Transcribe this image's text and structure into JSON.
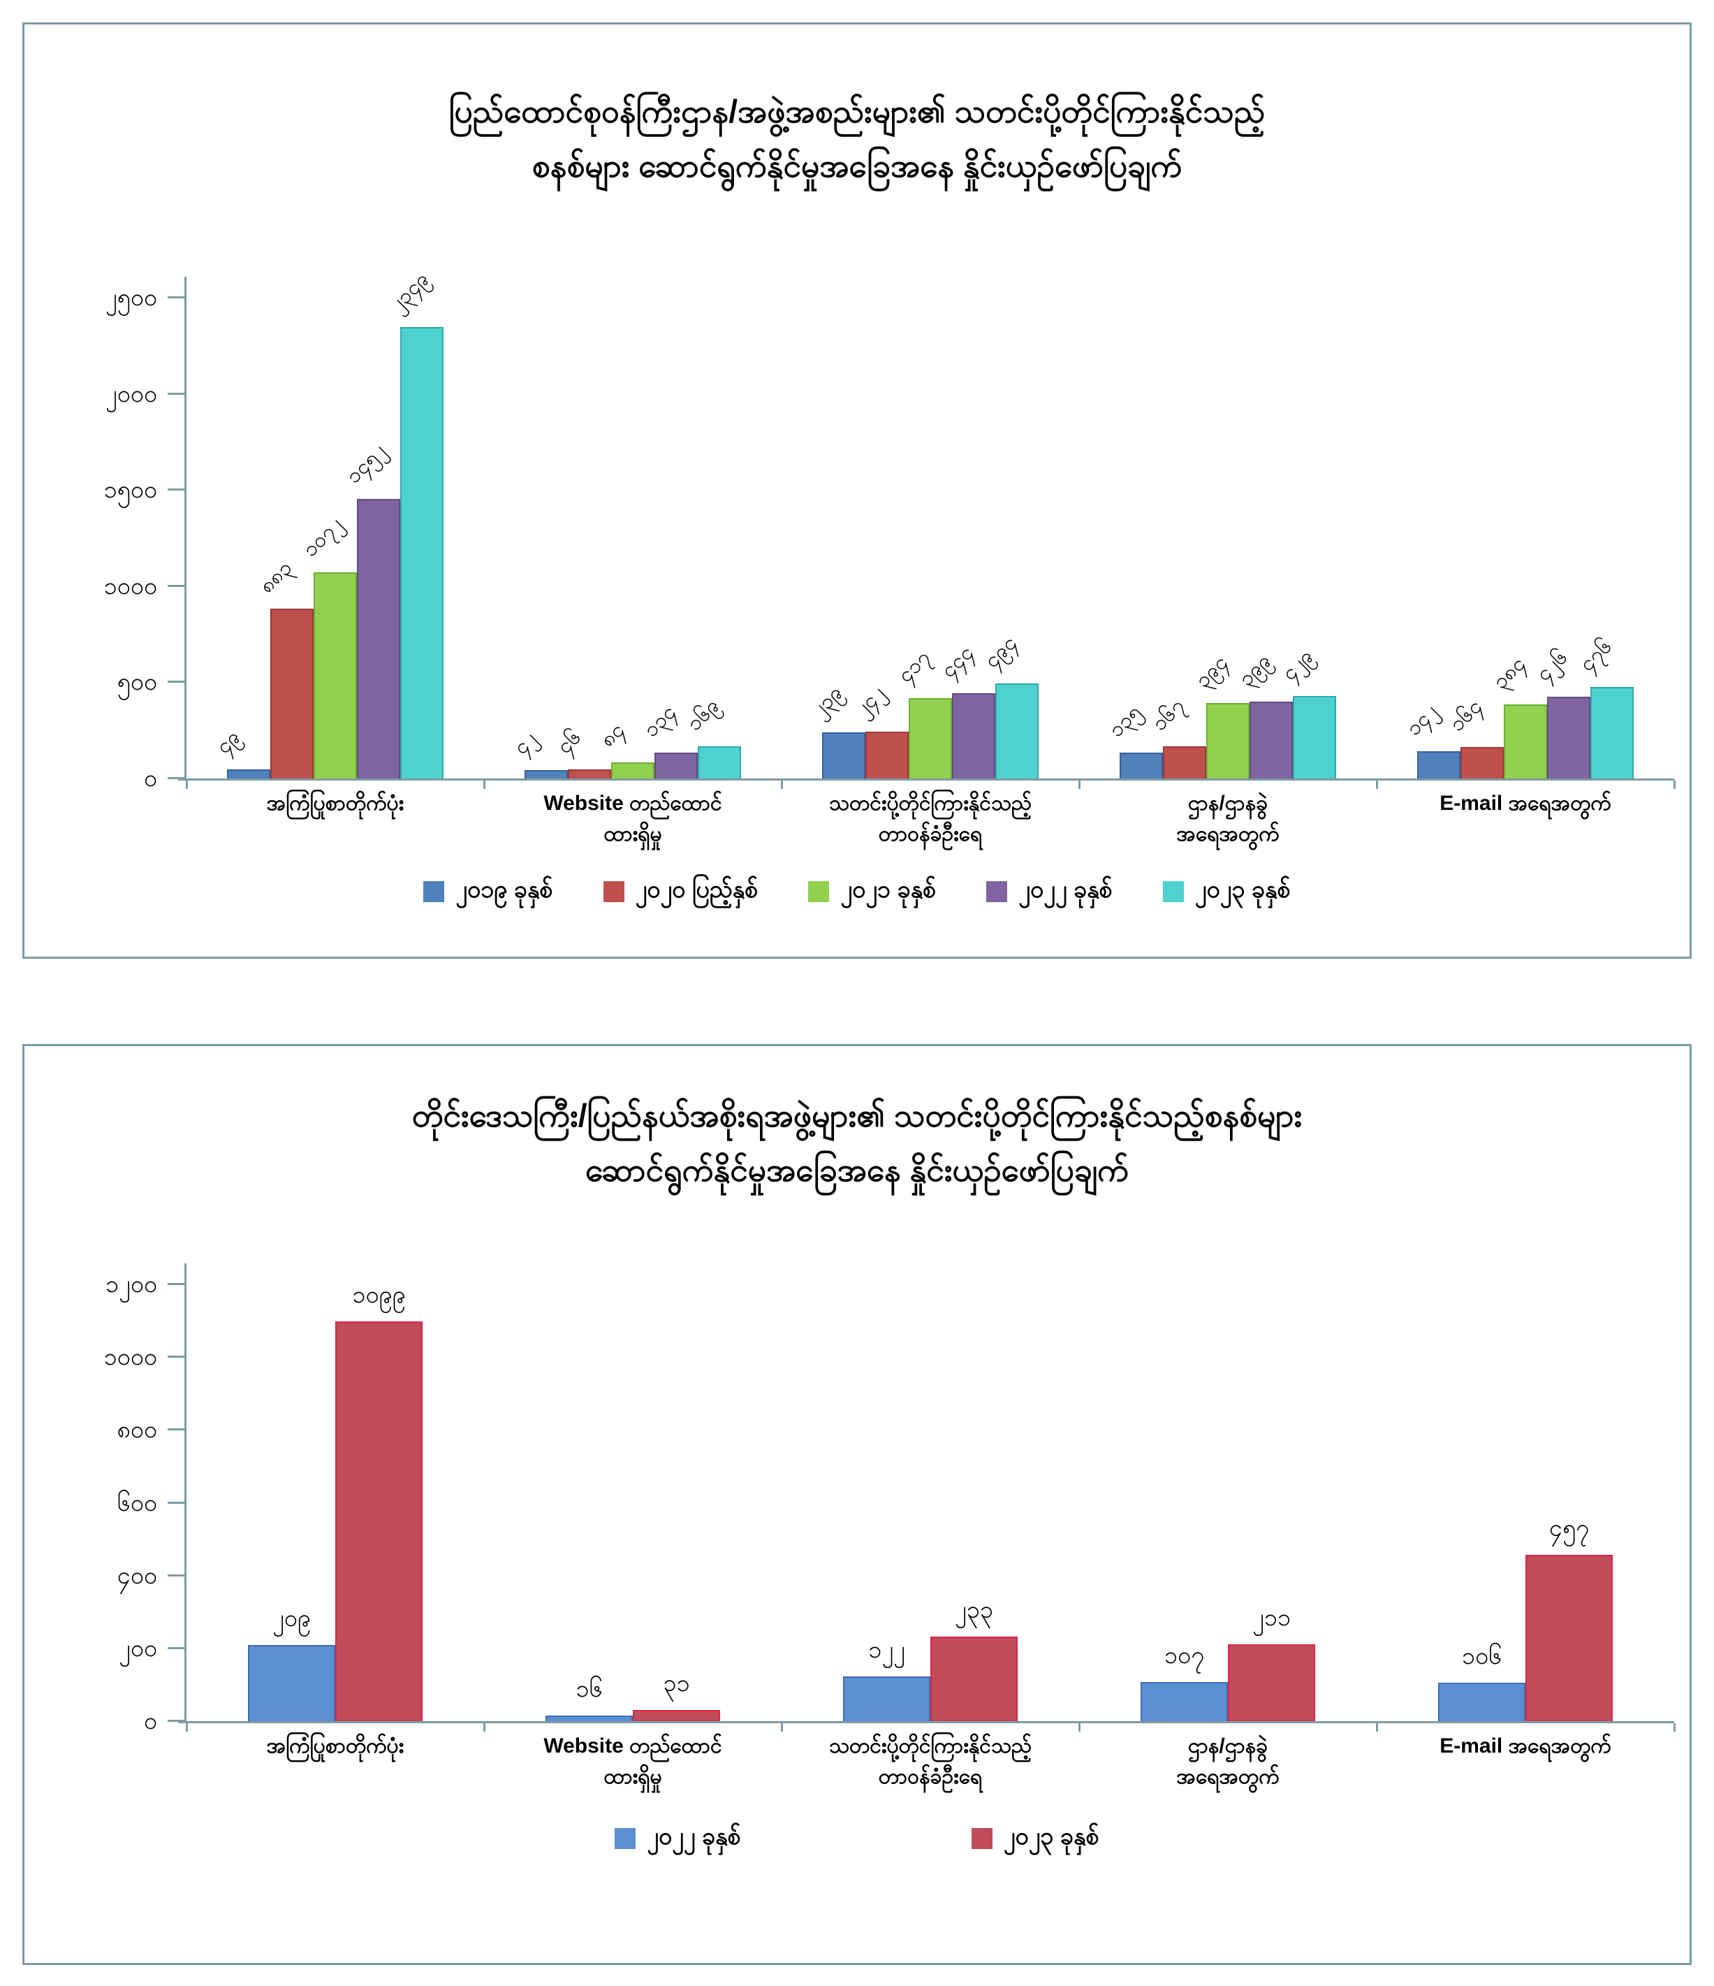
{
  "page": {
    "background": "#ffffff",
    "panel_border_color": "#7e9ba4"
  },
  "chart_data": [
    {
      "type": "bar",
      "title_lines": [
        "ပြည်ထောင်စုဝန်ကြီးဌာန/အဖွဲ့အစည်းများ၏ သတင်းပို့တိုင်ကြားနိုင်သည့်",
        "စနစ်များ ဆောင်ရွက်နိုင်မှုအခြေအနေ နှိုင်းယှဉ်ဖော်ပြချက်"
      ],
      "ylim": [
        0,
        2500
      ],
      "grid": false,
      "legend_position": "bottom",
      "value_label_rotation_deg": 45,
      "yticks": [
        {
          "value": 0,
          "label": "၀"
        },
        {
          "value": 500,
          "label": "၅၀၀"
        },
        {
          "value": 1000,
          "label": "၁၀၀၀"
        },
        {
          "value": 1500,
          "label": "၁၅၀၀"
        },
        {
          "value": 2000,
          "label": "၂၀၀၀"
        },
        {
          "value": 2500,
          "label": "၂၅၀၀"
        }
      ],
      "categories": [
        [
          "အကြံပြုစာတိုက်ပုံး"
        ],
        [
          "Website တည်ထောင်",
          "ထားရှိမှု"
        ],
        [
          "သတင်းပို့တိုင်ကြားနိုင်သည့်",
          "တာဝန်ခံဦးရေ"
        ],
        [
          "ဌာန/ဌာနခွဲ",
          "အရေအတွက်"
        ],
        [
          "E-mail အရေအတွက်"
        ]
      ],
      "series": [
        {
          "name": "၂၀၁၉ ခုနှစ်",
          "color": "#4f81bd",
          "border": "#38619b",
          "values": [
            49,
            42,
            239,
            135,
            142
          ],
          "labels": [
            "၄၉",
            "၄၂",
            "၂၃၉",
            "၁၃၅",
            "၁၄၂"
          ]
        },
        {
          "name": "၂၀၂၀ ပြည့်နှစ်",
          "color": "#c0504d",
          "border": "#9c3836",
          "values": [
            883,
            46,
            242,
            167,
            164
          ],
          "labels": [
            "၈၈၃",
            "၄၆",
            "၂၄၂",
            "၁၆၇",
            "၁၆၄"
          ]
        },
        {
          "name": "၂၀၂၁ ခုနှစ်",
          "color": "#92d050",
          "border": "#6fae31",
          "values": [
            1072,
            84,
            417,
            394,
            384
          ],
          "labels": [
            "၁၀၇၂",
            "၈၄",
            "၄၁၇",
            "၃၉၄",
            "၃၈၄"
          ]
        },
        {
          "name": "၂၀၂၂ ခုနှစ်",
          "color": "#8064a2",
          "border": "#614a80",
          "values": [
            1452,
            134,
            444,
            399,
            426
          ],
          "labels": [
            "၁၄၅၂",
            "၁၃၄",
            "၄၄၄",
            "၃၉၉",
            "၄၂၆"
          ]
        },
        {
          "name": "၂၀၂၃ ခုနှစ်",
          "color": "#4fd1d1",
          "border": "#2fa9ab",
          "values": [
            2349,
            169,
            494,
            429,
            476
          ],
          "labels": [
            "၂၃၄၉",
            "၁၆၉",
            "၄၉၄",
            "၄၂၉",
            "၄၇၆"
          ]
        }
      ]
    },
    {
      "type": "bar",
      "title_lines": [
        "တိုင်းဒေသကြီး/ပြည်နယ်အစိုးရအဖွဲ့များ၏ သတင်းပို့တိုင်ကြားနိုင်သည့်စနစ်များ",
        "ဆောင်ရွက်နိုင်မှုအခြေအနေ နှိုင်းယှဉ်ဖော်ပြချက်"
      ],
      "ylim": [
        0,
        1200
      ],
      "grid": false,
      "legend_position": "bottom",
      "value_label_rotation_deg": 0,
      "yticks": [
        {
          "value": 0,
          "label": "၀"
        },
        {
          "value": 200,
          "label": "၂၀၀"
        },
        {
          "value": 400,
          "label": "၄၀၀"
        },
        {
          "value": 600,
          "label": "၆၀၀"
        },
        {
          "value": 800,
          "label": "၈၀၀"
        },
        {
          "value": 1000,
          "label": "၁၀၀၀"
        },
        {
          "value": 1200,
          "label": "၁၂၀၀"
        }
      ],
      "categories": [
        [
          "အကြံပြုစာတိုက်ပုံး"
        ],
        [
          "Website တည်ထောင်",
          "ထားရှိမှု"
        ],
        [
          "သတင်းပို့တိုင်ကြားနိုင်သည့်",
          "တာဝန်ခံဦးရေ"
        ],
        [
          "ဌာန/ဌာနခွဲ",
          "အရေအတွက်"
        ],
        [
          "E-mail အရေအတွက်"
        ]
      ],
      "series": [
        {
          "name": "၂၀၂၂ ခုနှစ်",
          "color": "#5b8fd4",
          "border": "#3f6cb2",
          "values": [
            209,
            16,
            122,
            107,
            106
          ],
          "labels": [
            "၂၀၉",
            "၁၆",
            "၁၂၂",
            "၁၀၇",
            "၁၀၆"
          ]
        },
        {
          "name": "၂၀၂၃ ခုနှစ်",
          "color": "#bf4b5b",
          "border": "#de2446",
          "values": [
            1099,
            31,
            233,
            211,
            457
          ],
          "labels": [
            "၁၀၉၉",
            "၃၁",
            "၂၃၃",
            "၂၁၁",
            "၄၅၇"
          ]
        }
      ]
    }
  ]
}
